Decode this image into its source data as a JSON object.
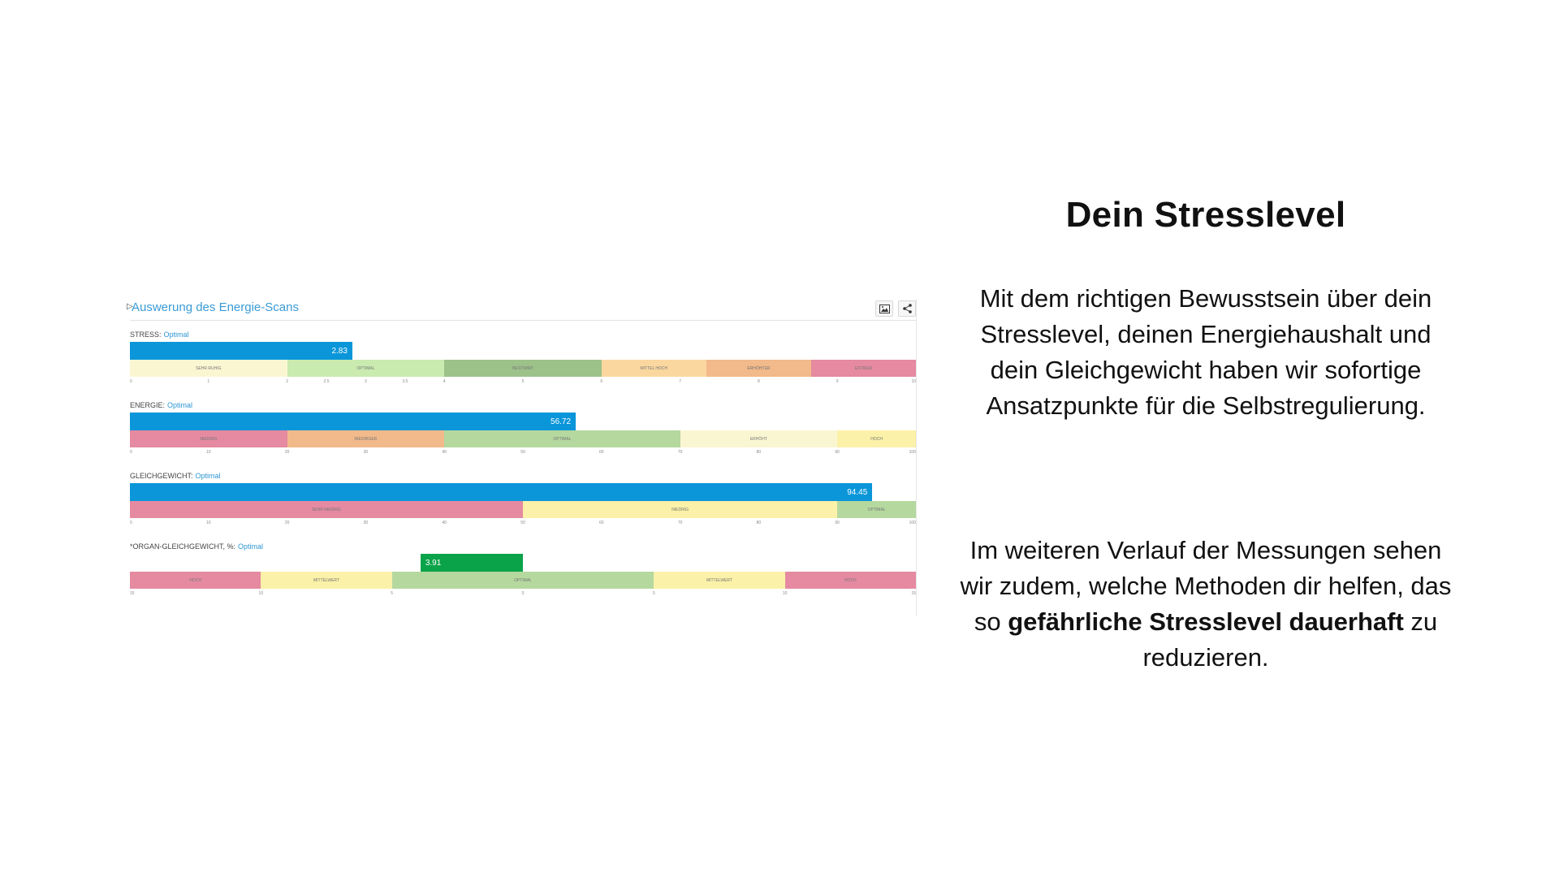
{
  "report": {
    "title": "Auswerung des Energie-Scans",
    "metrics": [
      {
        "label": "STRESS:",
        "status": "Optimal",
        "value_text": "2.83",
        "value": 2.83,
        "bar_color": "#0a96d9",
        "bar_from": "left",
        "zones": [
          {
            "label": "Sehr ruhig",
            "color": "#fbf6d2",
            "span": 1.5
          },
          {
            "label": "Optimal",
            "color": "#c9ebb0",
            "span": 1.5
          },
          {
            "label": "Bestimmt",
            "color": "#9cc28a",
            "span": 1.5
          },
          {
            "label": "Mittel hoch",
            "color": "#fbd7a0",
            "span": 1
          },
          {
            "label": "Erhöhter",
            "color": "#f2b98a",
            "span": 1
          },
          {
            "label": "Extrem",
            "color": "#e58aa0",
            "span": 1
          }
        ],
        "ticks": [
          "0",
          "1",
          "2",
          "2.5",
          "3",
          "3.5",
          "4",
          "5",
          "6",
          "7",
          "8",
          "9",
          "10"
        ],
        "tick_positions": [
          0,
          1,
          2,
          2.5,
          3,
          3.5,
          4,
          5,
          6,
          7,
          8,
          9,
          10
        ],
        "scale_max": 10
      },
      {
        "label": "ENERGIE:",
        "status": "Optimal",
        "value_text": "56.72",
        "value": 56.72,
        "bar_color": "#0a96d9",
        "bar_from": "left",
        "zones": [
          {
            "label": "Niedrig",
            "color": "#e58aa0",
            "span": 20
          },
          {
            "label": "Niedriger",
            "color": "#f2b98a",
            "span": 20
          },
          {
            "label": "Optimal",
            "color": "#b5d89f",
            "span": 30
          },
          {
            "label": "Erhöht",
            "color": "#fbf6d2",
            "span": 20
          },
          {
            "label": "Hoch",
            "color": "#fbf1a8",
            "span": 10
          }
        ],
        "ticks": [
          "0",
          "10",
          "20",
          "30",
          "40",
          "50",
          "60",
          "70",
          "80",
          "90",
          "100"
        ],
        "tick_positions": [
          0,
          10,
          20,
          30,
          40,
          50,
          60,
          70,
          80,
          90,
          100
        ],
        "scale_max": 100
      },
      {
        "label": "GLEICHGEWICHT:",
        "status": "Optimal",
        "value_text": "94.45",
        "value": 94.45,
        "bar_color": "#0a96d9",
        "bar_from": "left",
        "zones": [
          {
            "label": "Sehr niedrig",
            "color": "#e58aa0",
            "span": 50
          },
          {
            "label": "Niedrig",
            "color": "#fbf1a8",
            "span": 40
          },
          {
            "label": "Optimal",
            "color": "#b5d89f",
            "span": 10
          }
        ],
        "ticks": [
          "0",
          "10",
          "20",
          "30",
          "40",
          "50",
          "60",
          "70",
          "80",
          "90",
          "100"
        ],
        "tick_positions": [
          0,
          10,
          20,
          30,
          40,
          50,
          60,
          70,
          80,
          90,
          100
        ],
        "scale_max": 100
      },
      {
        "label": "*ORGAN-GLEICHGEWICHT, %:",
        "status": "Optimal",
        "value_text": "3.91",
        "value": 3.91,
        "bar_color": "#0ba34a",
        "bar_from": "center",
        "zones": [
          {
            "label": "Hoch",
            "color": "#e58aa0",
            "span": 5
          },
          {
            "label": "Mittelwert",
            "color": "#fbf1a8",
            "span": 5
          },
          {
            "label": "Optimal",
            "color": "#b5d89f",
            "span": 10
          },
          {
            "label": "Mittelwert",
            "color": "#fbf1a8",
            "span": 5
          },
          {
            "label": "Hoch",
            "color": "#e58aa0",
            "span": 5
          }
        ],
        "ticks": [
          "15",
          "10",
          "5",
          "0",
          "5",
          "10",
          "15"
        ],
        "tick_positions": [
          0,
          5,
          10,
          15,
          20,
          25,
          30
        ],
        "scale_max": 30,
        "center_offset": 15
      }
    ]
  },
  "text": {
    "heading": "Dein Stresslevel",
    "para1": "Mit dem richtigen Bewusstsein über dein Stresslevel, deinen Energiehaushalt und dein Gleichgewicht haben wir sofortige Ansatzpunkte für die Selbstregulierung.",
    "para2_start": "Im weiteren Verlauf der Messungen sehen wir zudem, welche Methoden dir helfen, das so ",
    "para2_bold": "gefährliche Stresslevel dauerhaft",
    "para2_end": " zu reduzieren."
  },
  "icons": [
    "image-icon",
    "share-icon"
  ]
}
